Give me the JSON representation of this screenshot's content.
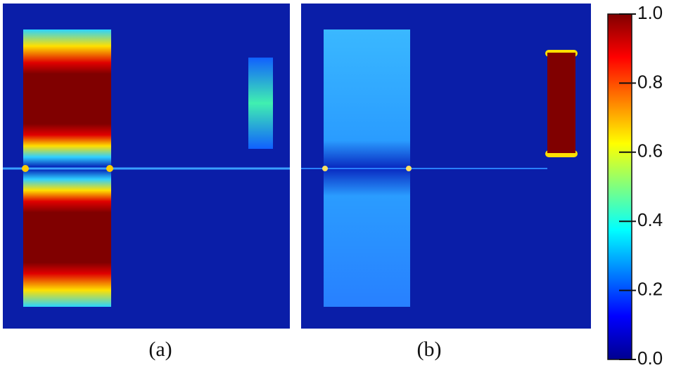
{
  "chart_data": {
    "type": "field-map",
    "panels": [
      "(a)",
      "(b)"
    ],
    "clim": [
      0,
      1
    ],
    "cticks": [
      {
        "value": 0,
        "label": "0.0"
      },
      0.2,
      0.4,
      0.6,
      0.8,
      {
        "value": 1,
        "label": "1.0"
      }
    ]
  }
}
